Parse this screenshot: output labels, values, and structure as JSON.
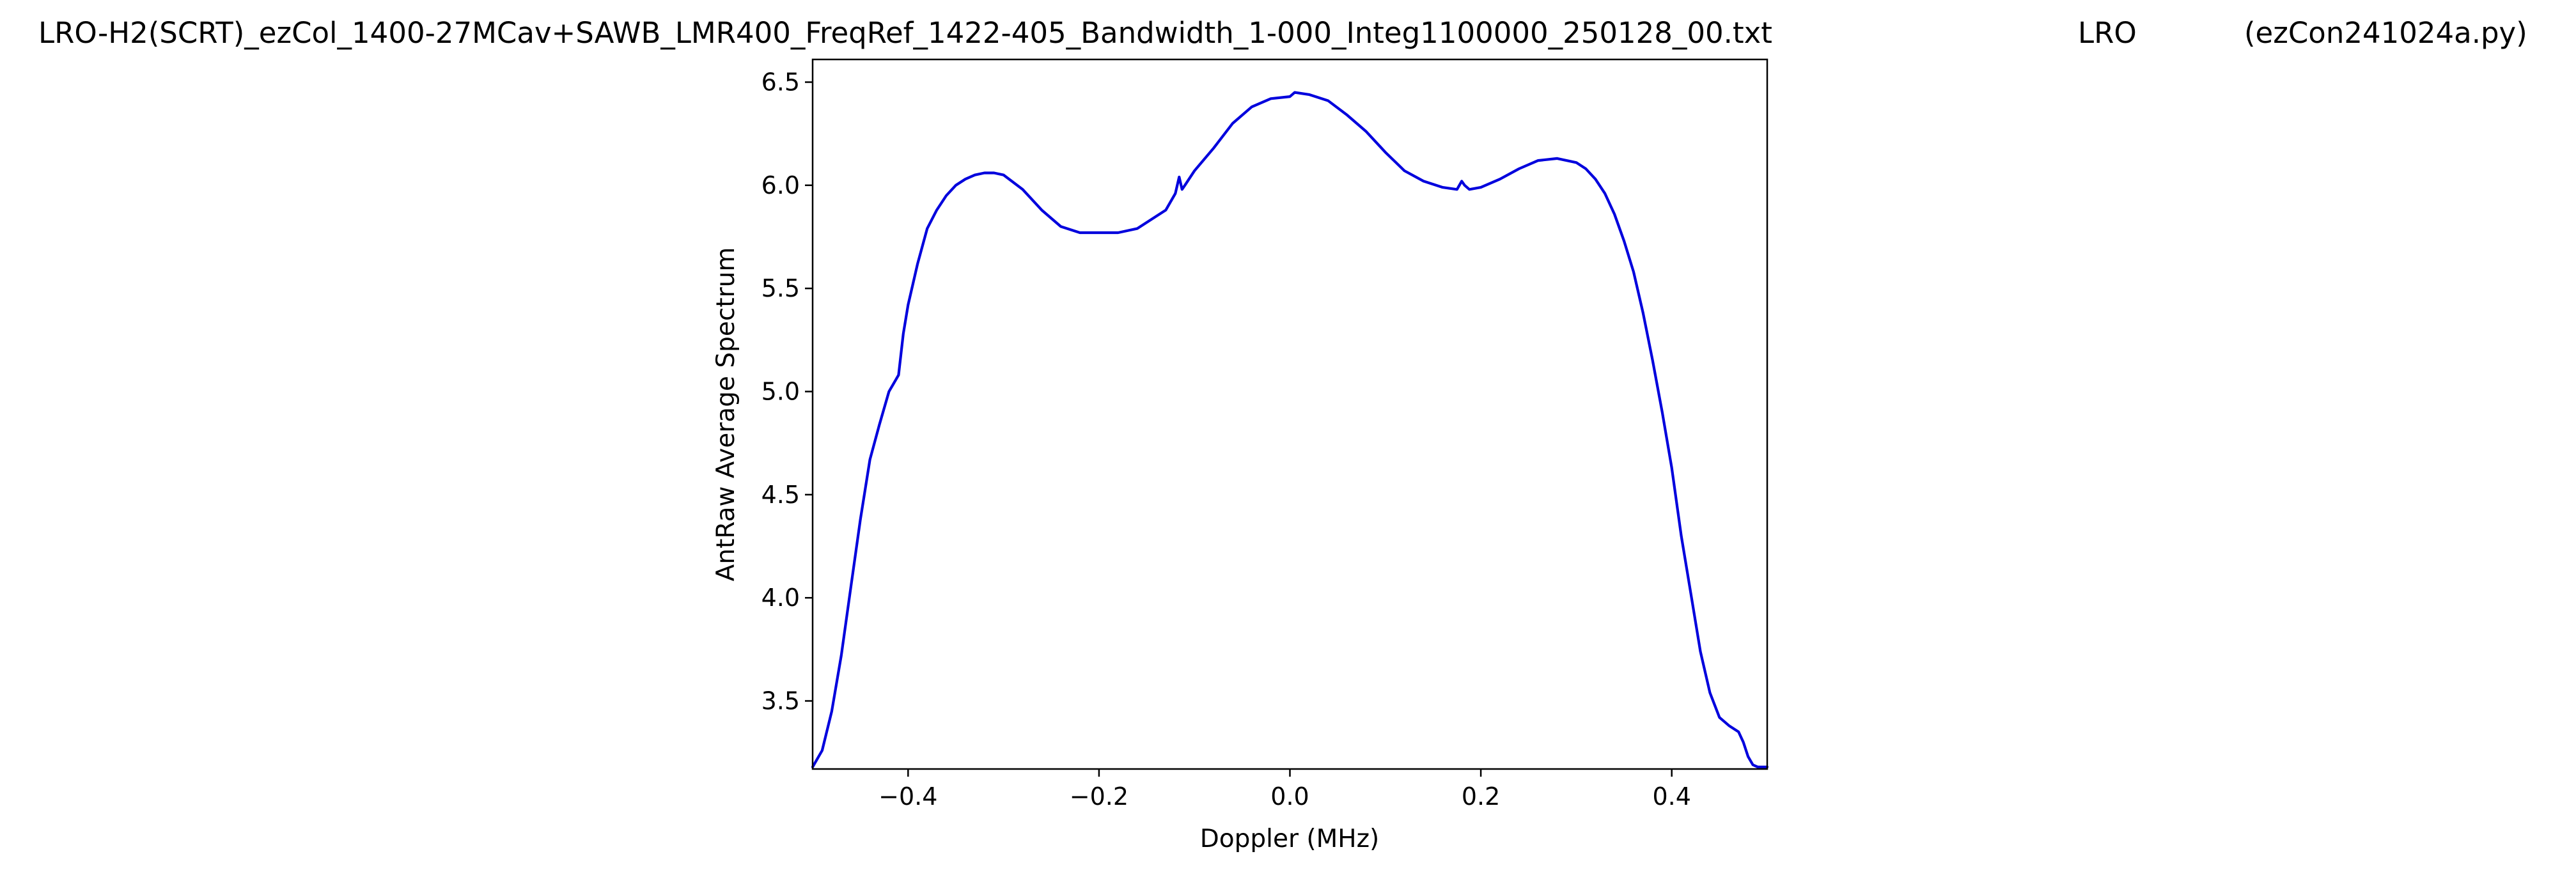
{
  "header": {
    "filename": "LRO-H2(SCRT)_ezCol_1400-27MCav+SAWB_LMR400_FreqRef_1422-405_Bandwidth_1-000_Integ1100000_250128_00.txt",
    "site": "LRO",
    "program": "(ezCon241024a.py)"
  },
  "chart_data": {
    "type": "line",
    "title": "",
    "xlabel": "Doppler (MHz)",
    "ylabel": "AntRaw Average Spectrum",
    "xlim": [
      -0.5,
      0.5
    ],
    "ylim": [
      3.17,
      6.61
    ],
    "xticks": [
      -0.4,
      -0.2,
      0.0,
      0.2,
      0.4
    ],
    "xtick_labels": [
      "−0.4",
      "−0.2",
      "0.0",
      "0.2",
      "0.4"
    ],
    "yticks": [
      3.5,
      4.0,
      4.5,
      5.0,
      5.5,
      6.0,
      6.5
    ],
    "ytick_labels": [
      "3.5",
      "4.0",
      "4.5",
      "5.0",
      "5.5",
      "6.0",
      "6.5"
    ],
    "grid": false,
    "series": [
      {
        "color": "#0000dd",
        "x": [
          -0.5,
          -0.49,
          -0.48,
          -0.47,
          -0.46,
          -0.45,
          -0.44,
          -0.43,
          -0.42,
          -0.41,
          -0.405,
          -0.4,
          -0.39,
          -0.38,
          -0.37,
          -0.36,
          -0.35,
          -0.34,
          -0.33,
          -0.32,
          -0.31,
          -0.3,
          -0.28,
          -0.26,
          -0.24,
          -0.22,
          -0.2,
          -0.18,
          -0.16,
          -0.14,
          -0.13,
          -0.12,
          -0.116,
          -0.113,
          -0.11,
          -0.1,
          -0.08,
          -0.06,
          -0.04,
          -0.02,
          0.0,
          0.005,
          0.02,
          0.04,
          0.06,
          0.08,
          0.1,
          0.12,
          0.14,
          0.16,
          0.175,
          0.18,
          0.183,
          0.188,
          0.2,
          0.22,
          0.24,
          0.26,
          0.28,
          0.3,
          0.31,
          0.32,
          0.33,
          0.34,
          0.35,
          0.36,
          0.37,
          0.38,
          0.39,
          0.4,
          0.41,
          0.42,
          0.43,
          0.44,
          0.45,
          0.46,
          0.47,
          0.475,
          0.48,
          0.485,
          0.49,
          0.5
        ],
        "y": [
          3.18,
          3.26,
          3.45,
          3.72,
          4.05,
          4.38,
          4.67,
          4.84,
          5.0,
          5.08,
          5.28,
          5.42,
          5.62,
          5.79,
          5.88,
          5.95,
          6.0,
          6.03,
          6.05,
          6.06,
          6.06,
          6.05,
          5.98,
          5.88,
          5.8,
          5.77,
          5.77,
          5.77,
          5.79,
          5.85,
          5.88,
          5.96,
          6.04,
          5.98,
          6.0,
          6.07,
          6.18,
          6.3,
          6.38,
          6.42,
          6.43,
          6.45,
          6.44,
          6.41,
          6.34,
          6.26,
          6.16,
          6.07,
          6.02,
          5.99,
          5.98,
          6.02,
          6.0,
          5.98,
          5.99,
          6.03,
          6.08,
          6.12,
          6.13,
          6.11,
          6.08,
          6.03,
          5.96,
          5.86,
          5.73,
          5.58,
          5.38,
          5.15,
          4.9,
          4.63,
          4.3,
          4.02,
          3.74,
          3.54,
          3.42,
          3.38,
          3.35,
          3.3,
          3.23,
          3.19,
          3.18,
          3.18
        ]
      }
    ]
  }
}
